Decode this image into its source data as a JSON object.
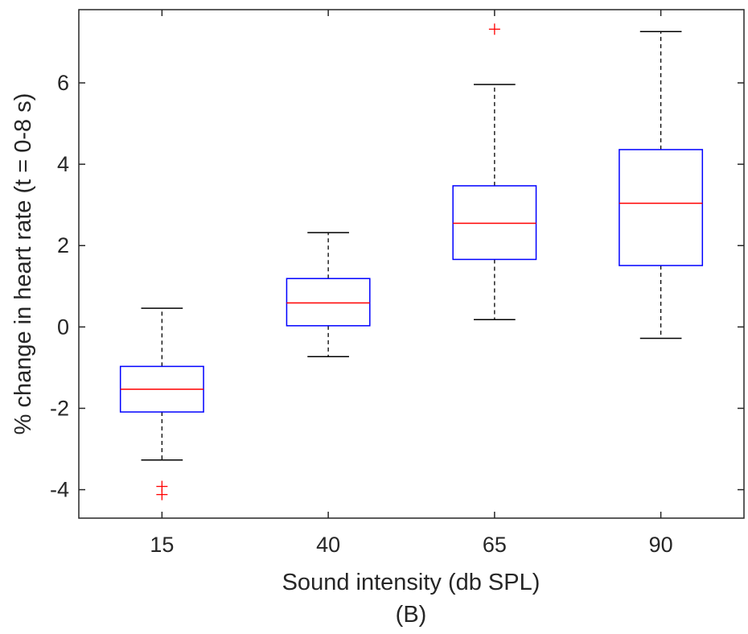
{
  "chart_data": {
    "type": "box",
    "categories": [
      "15",
      "40",
      "65",
      "90"
    ],
    "xlabel": "Sound intensity (db SPL)",
    "ylabel": "% change in heart rate (t = 0-8 s)",
    "caption": "(B)",
    "ylim": [
      -4.7,
      7.8
    ],
    "yticks": [
      -4,
      -2,
      0,
      2,
      4,
      6
    ],
    "ytick_labels": [
      "-4",
      "-2",
      "0",
      "2",
      "4",
      "6"
    ],
    "grid": false,
    "boxes": [
      {
        "category": "15",
        "whisker_low": -3.27,
        "q1": -2.09,
        "median": -1.53,
        "q3": -0.97,
        "whisker_high": 0.46,
        "outliers": [
          -3.92,
          -4.12
        ]
      },
      {
        "category": "40",
        "whisker_low": -0.73,
        "q1": 0.03,
        "median": 0.59,
        "q3": 1.19,
        "whisker_high": 2.32,
        "outliers": []
      },
      {
        "category": "65",
        "whisker_low": 0.18,
        "q1": 1.66,
        "median": 2.55,
        "q3": 3.47,
        "whisker_high": 5.96,
        "outliers": [
          7.32
        ]
      },
      {
        "category": "90",
        "whisker_low": -0.28,
        "q1": 1.51,
        "median": 3.04,
        "q3": 4.36,
        "whisker_high": 7.26,
        "outliers": []
      }
    ],
    "colors": {
      "box": "#0000ff",
      "median": "#ff0000",
      "whisker": "#000000",
      "outlier": "#ff0000",
      "axis": "#262626"
    }
  }
}
